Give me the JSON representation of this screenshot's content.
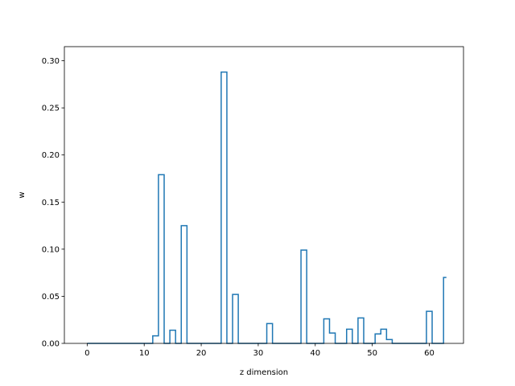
{
  "chart_data": {
    "type": "line",
    "drawstyle": "steps-mid",
    "title": "",
    "xlabel": "z dimension",
    "ylabel": "w",
    "xlim": [
      -4,
      66
    ],
    "ylim": [
      0,
      0.315
    ],
    "xticks": [
      0,
      10,
      20,
      30,
      40,
      50,
      60
    ],
    "xtick_labels": [
      "0",
      "10",
      "20",
      "30",
      "40",
      "50",
      "60"
    ],
    "yticks": [
      0,
      0.05,
      0.1,
      0.15,
      0.2,
      0.25,
      0.3
    ],
    "ytick_labels": [
      "0.00",
      "0.05",
      "0.10",
      "0.15",
      "0.20",
      "0.25",
      "0.30"
    ],
    "grid": false,
    "series": [
      {
        "color": "#1f77b4",
        "x": [
          0,
          1,
          2,
          3,
          4,
          5,
          6,
          7,
          8,
          9,
          10,
          11,
          12,
          13,
          14,
          15,
          16,
          17,
          18,
          19,
          20,
          21,
          22,
          23,
          24,
          25,
          26,
          27,
          28,
          29,
          30,
          31,
          32,
          33,
          34,
          35,
          36,
          37,
          38,
          39,
          40,
          41,
          42,
          43,
          44,
          45,
          46,
          47,
          48,
          49,
          50,
          51,
          52,
          53,
          54,
          55,
          56,
          57,
          58,
          59,
          60,
          61,
          62,
          63
        ],
        "values": [
          0,
          0,
          0,
          0,
          0,
          0,
          0,
          0,
          0,
          0,
          0,
          0,
          0.008,
          0.179,
          0,
          0.014,
          0,
          0.125,
          0,
          0,
          0,
          0,
          0,
          0,
          0.288,
          0,
          0.052,
          0,
          0,
          0,
          0,
          0,
          0.021,
          0,
          0,
          0,
          0,
          0,
          0.099,
          0,
          0,
          0,
          0.026,
          0.011,
          0,
          0,
          0.015,
          0,
          0.027,
          0,
          0,
          0.01,
          0.015,
          0.004,
          0,
          0,
          0,
          0,
          0,
          0,
          0.034,
          0,
          0,
          0.07
        ]
      }
    ]
  }
}
